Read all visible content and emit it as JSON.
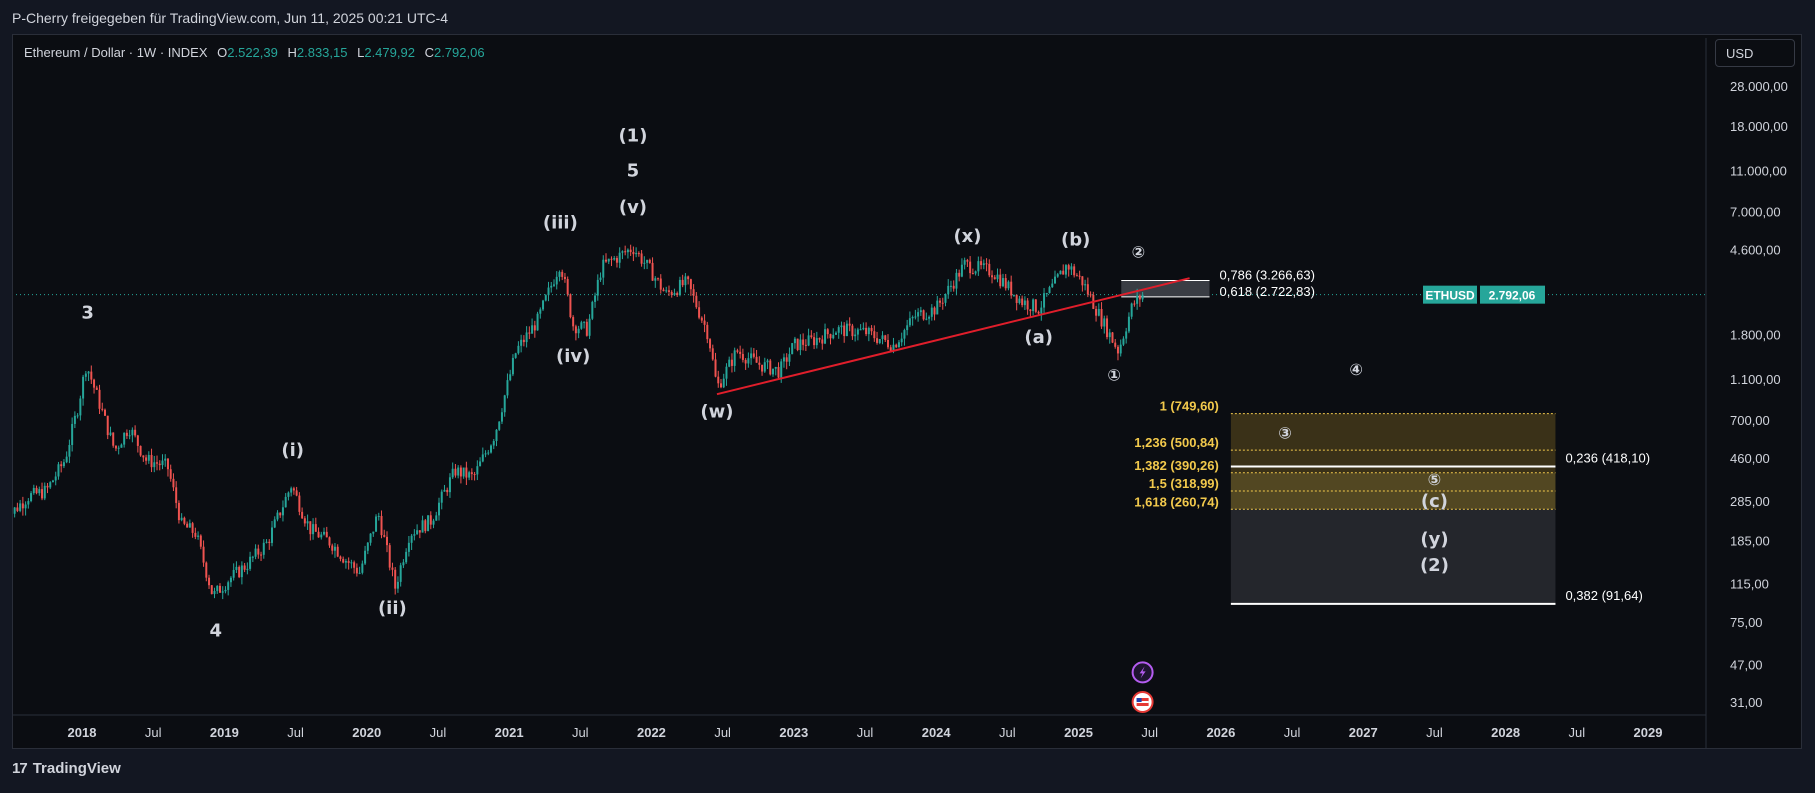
{
  "header": {
    "title": "P-Cherry freigegeben für TradingView.com, Jun 11, 2025 00:21 UTC-4"
  },
  "legend": {
    "symbol": "Ethereum / Dollar · 1W · INDEX",
    "o_label": "O",
    "o_value": "2.522,39",
    "h_label": "H",
    "h_value": "2.833,15",
    "l_label": "L",
    "l_value": "2.479,92",
    "c_label": "C",
    "c_value": "2.792,06"
  },
  "currency_button": "USD",
  "footer": {
    "brand": "TradingView"
  },
  "colors": {
    "background": "#131722",
    "up": "#26a69a",
    "down": "#ef5350",
    "trendline": "#e01e2b",
    "fib_gold": "#f2c94c",
    "text": "#d1d4dc"
  },
  "chart_data": {
    "type": "candlestick",
    "symbol": "ETHUSD",
    "timeframe": "1W",
    "scale": "log",
    "price_axis": {
      "ticks": [
        {
          "value": 28000,
          "label": "28.000,00"
        },
        {
          "value": 18000,
          "label": "18.000,00"
        },
        {
          "value": 11000,
          "label": "11.000,00"
        },
        {
          "value": 7000,
          "label": "7.000,00"
        },
        {
          "value": 4600,
          "label": "4.600,00"
        },
        {
          "value": 1800,
          "label": "1.800,00"
        },
        {
          "value": 1100,
          "label": "1.100,00"
        },
        {
          "value": 700,
          "label": "700,00"
        },
        {
          "value": 460,
          "label": "460,00"
        },
        {
          "value": 285,
          "label": "285,00"
        },
        {
          "value": 185,
          "label": "185,00"
        },
        {
          "value": 115,
          "label": "115,00"
        },
        {
          "value": 75,
          "label": "75,00"
        },
        {
          "value": 47,
          "label": "47,00"
        },
        {
          "value": 31,
          "label": "31,00"
        }
      ],
      "last_price": {
        "symbol": "ETHUSD",
        "value": 2792.06,
        "label": "2.792,06"
      }
    },
    "time_axis": [
      {
        "t": 2018.0,
        "label": "2018"
      },
      {
        "t": 2018.5,
        "label": "Jul"
      },
      {
        "t": 2019.0,
        "label": "2019"
      },
      {
        "t": 2019.5,
        "label": "Jul"
      },
      {
        "t": 2020.0,
        "label": "2020"
      },
      {
        "t": 2020.5,
        "label": "Jul"
      },
      {
        "t": 2021.0,
        "label": "2021"
      },
      {
        "t": 2021.5,
        "label": "Jul"
      },
      {
        "t": 2022.0,
        "label": "2022"
      },
      {
        "t": 2022.5,
        "label": "Jul"
      },
      {
        "t": 2023.0,
        "label": "2023"
      },
      {
        "t": 2023.5,
        "label": "Jul"
      },
      {
        "t": 2024.0,
        "label": "2024"
      },
      {
        "t": 2024.5,
        "label": "Jul"
      },
      {
        "t": 2025.0,
        "label": "2025"
      },
      {
        "t": 2025.5,
        "label": "Jul"
      },
      {
        "t": 2026.0,
        "label": "2026"
      },
      {
        "t": 2026.5,
        "label": "Jul"
      },
      {
        "t": 2027.0,
        "label": "2027"
      },
      {
        "t": 2027.5,
        "label": "Jul"
      },
      {
        "t": 2028.0,
        "label": "2028"
      },
      {
        "t": 2028.5,
        "label": "Jul"
      },
      {
        "t": 2029.0,
        "label": "2029"
      }
    ],
    "price_path": [
      [
        2017.45,
        230
      ],
      [
        2017.62,
        300
      ],
      [
        2017.75,
        320
      ],
      [
        2017.88,
        450
      ],
      [
        2017.97,
        800
      ],
      [
        2018.03,
        1300
      ],
      [
        2018.12,
        850
      ],
      [
        2018.23,
        500
      ],
      [
        2018.33,
        650
      ],
      [
        2018.45,
        450
      ],
      [
        2018.6,
        420
      ],
      [
        2018.7,
        220
      ],
      [
        2018.8,
        200
      ],
      [
        2018.92,
        100
      ],
      [
        2019.03,
        120
      ],
      [
        2019.15,
        140
      ],
      [
        2019.3,
        180
      ],
      [
        2019.47,
        340
      ],
      [
        2019.6,
        210
      ],
      [
        2019.75,
        180
      ],
      [
        2019.85,
        150
      ],
      [
        2019.95,
        130
      ],
      [
        2020.08,
        250
      ],
      [
        2020.2,
        110
      ],
      [
        2020.3,
        200
      ],
      [
        2020.45,
        230
      ],
      [
        2020.62,
        400
      ],
      [
        2020.75,
        370
      ],
      [
        2020.9,
        600
      ],
      [
        2021.05,
        1500
      ],
      [
        2021.2,
        2100
      ],
      [
        2021.36,
        4000
      ],
      [
        2021.45,
        2000
      ],
      [
        2021.55,
        1900
      ],
      [
        2021.65,
        3800
      ],
      [
        2021.87,
        4700
      ],
      [
        2022.0,
        3600
      ],
      [
        2022.1,
        2800
      ],
      [
        2022.25,
        3200
      ],
      [
        2022.4,
        1800
      ],
      [
        2022.46,
        1000
      ],
      [
        2022.6,
        1500
      ],
      [
        2022.75,
        1300
      ],
      [
        2022.9,
        1200
      ],
      [
        2023.0,
        1600
      ],
      [
        2023.15,
        1700
      ],
      [
        2023.3,
        1900
      ],
      [
        2023.5,
        1850
      ],
      [
        2023.7,
        1600
      ],
      [
        2023.85,
        2200
      ],
      [
        2024.0,
        2400
      ],
      [
        2024.2,
        3900
      ],
      [
        2024.4,
        3600
      ],
      [
        2024.6,
        2600
      ],
      [
        2024.72,
        2400
      ],
      [
        2024.92,
        3900
      ],
      [
        2025.03,
        3200
      ],
      [
        2025.15,
        2200
      ],
      [
        2025.28,
        1500
      ],
      [
        2025.38,
        2500
      ],
      [
        2025.45,
        2792
      ]
    ],
    "trendline": {
      "from": {
        "t": 2022.46,
        "price": 930
      },
      "to": {
        "t": 2025.78,
        "price": 3350
      }
    },
    "retracement_box": {
      "t_start": 2025.3,
      "t_end": 2025.92,
      "levels": [
        {
          "ratio": "0,786",
          "price": 3266.63,
          "label": "0,786 (3.266,63)"
        },
        {
          "ratio": "0,618",
          "price": 2722.83,
          "label": "0,618 (2.722,83)"
        }
      ]
    },
    "target_zone": {
      "t_start": 2026.07,
      "t_end": 2028.35,
      "extensions": [
        {
          "price": 749.6,
          "label": "1 (749,60)"
        },
        {
          "price": 500.84,
          "label": "1,236 (500,84)"
        },
        {
          "price": 390.26,
          "label": "1,382 (390,26)"
        },
        {
          "price": 318.99,
          "label": "1,5 (318,99)"
        },
        {
          "price": 260.74,
          "label": "1,618 (260,74)"
        }
      ],
      "retracements": [
        {
          "price": 418.1,
          "label": "0,236 (418,10)"
        },
        {
          "price": 91.64,
          "label": "0,382 (91,64)"
        }
      ]
    },
    "wave_labels": [
      {
        "text": "3",
        "t": 2018.04,
        "price": 2150,
        "color": "#d1d4dc"
      },
      {
        "text": "4",
        "t": 2018.94,
        "price": 64,
        "color": "#d1d4dc"
      },
      {
        "text": "(i)",
        "t": 2019.48,
        "price": 470,
        "color": "#d1d4dc"
      },
      {
        "text": "(ii)",
        "t": 2020.18,
        "price": 82,
        "color": "#d1d4dc"
      },
      {
        "text": "(iii)",
        "t": 2021.36,
        "price": 5800,
        "color": "#d1d4dc"
      },
      {
        "text": "(iv)",
        "t": 2021.45,
        "price": 1330,
        "color": "#d1d4dc"
      },
      {
        "text": "(v)",
        "t": 2021.87,
        "price": 6900,
        "color": "#d1d4dc"
      },
      {
        "text": "5",
        "t": 2021.87,
        "price": 10300,
        "color": "#d1d4dc"
      },
      {
        "text": "(1)",
        "t": 2021.87,
        "price": 15200,
        "color": "#d1d4dc"
      },
      {
        "text": "(w)",
        "t": 2022.46,
        "price": 720,
        "color": "#d1d4dc"
      },
      {
        "text": "(x)",
        "t": 2024.22,
        "price": 5000,
        "color": "#d1d4dc"
      },
      {
        "text": "(a)",
        "t": 2024.72,
        "price": 1640,
        "color": "#d1d4dc"
      },
      {
        "text": "(b)",
        "t": 2024.98,
        "price": 4800,
        "color": "#d1d4dc"
      },
      {
        "text": "①",
        "t": 2025.25,
        "price": 1080,
        "color": "#d1d4dc"
      },
      {
        "text": "②",
        "t": 2025.42,
        "price": 4200,
        "color": "#d1d4dc"
      },
      {
        "text": "③",
        "t": 2026.45,
        "price": 570,
        "color": "#d1d4dc"
      },
      {
        "text": "④",
        "t": 2026.95,
        "price": 1150,
        "color": "#d1d4dc"
      },
      {
        "text": "⑤",
        "t": 2027.5,
        "price": 340,
        "color": "#d1d4dc"
      },
      {
        "text": "(c)",
        "t": 2027.5,
        "price": 268,
        "color": "#d1d4dc"
      },
      {
        "text": "(y)",
        "t": 2027.5,
        "price": 176,
        "color": "#d1d4dc"
      },
      {
        "text": "(2)",
        "t": 2027.5,
        "price": 132,
        "color": "#d1d4dc"
      }
    ],
    "event_icons": [
      {
        "name": "lightning-event-icon",
        "t": 2025.45,
        "price": 43
      },
      {
        "name": "us-flag-event-icon",
        "t": 2025.45,
        "price": 31
      }
    ]
  }
}
